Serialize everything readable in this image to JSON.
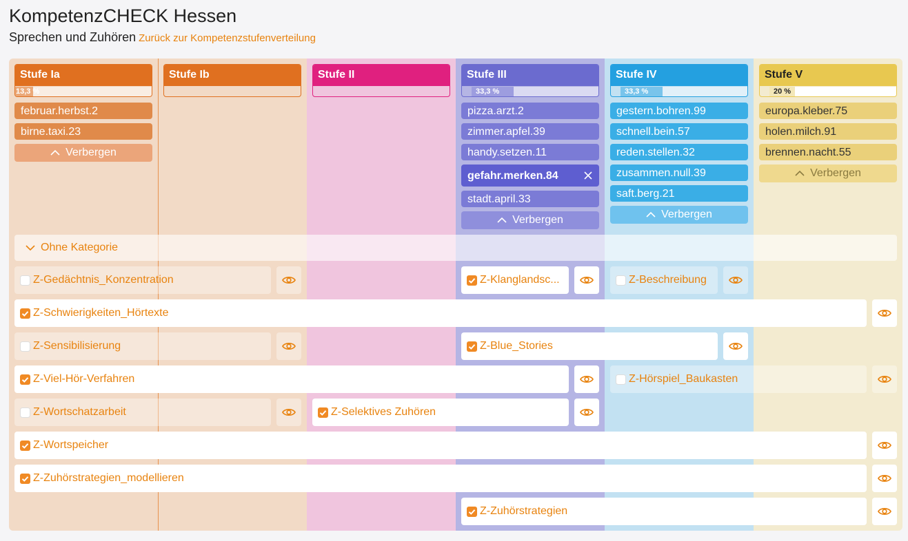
{
  "header": {
    "title": "KompetenzCHECK Hessen",
    "subtitle": "Sprechen und Zuhören",
    "link": "Zurück zur Kompetenzstufenverteilung"
  },
  "columns": [
    {
      "title": "Stufe Ia",
      "color": "#e07020",
      "bg": "#f2dac6",
      "progress": {
        "value": 13.3,
        "label": "13,3 %"
      },
      "tags": [
        {
          "label": "februar.herbst.2"
        },
        {
          "label": "birne.taxi.23"
        }
      ],
      "tag_color": "#e08a4a",
      "toggle": "Verbergen"
    },
    {
      "title": "Stufe Ib",
      "color": "#e07020",
      "bg": "#f2dac6"
    },
    {
      "title": "Stufe II",
      "color": "#e0207f",
      "bg": "#f0c5de"
    },
    {
      "title": "Stufe III",
      "color": "#6b6bcf",
      "bg": "#b5b5e4",
      "progress": {
        "value": 33.3,
        "label": "33,3 %"
      },
      "tags": [
        {
          "label": "pizza.arzt.2"
        },
        {
          "label": "zimmer.apfel.39"
        },
        {
          "label": "handy.setzen.11"
        },
        {
          "label": "gefahr.merken.84",
          "selected": true
        },
        {
          "label": "stadt.april.33"
        }
      ],
      "tag_color": "#7b7bd6",
      "toggle": "Verbergen"
    },
    {
      "title": "Stufe IV",
      "color": "#24a0e0",
      "bg": "#c2e1f2",
      "progress": {
        "value": 33.3,
        "label": "33,3 %"
      },
      "tags": [
        {
          "label": "gestern.bohren.99"
        },
        {
          "label": "schnell.bein.57"
        },
        {
          "label": "reden.stellen.32"
        },
        {
          "label": "zusammen.null.39"
        },
        {
          "label": "saft.berg.21"
        }
      ],
      "tag_color": "#3aaee6",
      "toggle": "Verbergen"
    },
    {
      "title": "Stufe V",
      "color": "#e8c850",
      "bg": "#f3ebd0",
      "progress": {
        "value": 20,
        "label": "20 %"
      },
      "tags": [
        {
          "label": "europa.kleber.75"
        },
        {
          "label": "holen.milch.91"
        },
        {
          "label": "brennen.nacht.55"
        }
      ],
      "tag_color": "#ead07a",
      "toggle": "Verbergen"
    }
  ],
  "category": "Ohne Kategorie",
  "rows": [
    [
      {
        "label": "Z-Gedächtnis_Konzentration",
        "checked": false
      },
      {
        "label": "Z-Klanglandsc...",
        "checked": true
      },
      {
        "label": "Z-Beschreibung",
        "checked": false
      }
    ],
    [
      {
        "label": "Z-Schwierigkeiten_Hörtexte",
        "checked": true
      }
    ],
    [
      {
        "label": "Z-Sensibilisierung",
        "checked": false
      },
      {
        "label": "Z-Blue_Stories",
        "checked": true
      }
    ],
    [
      {
        "label": "Z-Viel-Hör-Verfahren",
        "checked": true
      },
      {
        "label": "Z-Hörspiel_Baukasten",
        "checked": false
      }
    ],
    [
      {
        "label": "Z-Wortschatzarbeit",
        "checked": false
      },
      {
        "label": "Z-Selektives Zuhören",
        "checked": true
      }
    ],
    [
      {
        "label": "Z-Wortspeicher",
        "checked": true
      }
    ],
    [
      {
        "label": "Z-Zuhörstrategien_modellieren",
        "checked": true
      }
    ],
    [
      {
        "label": "Z-Zuhörstrategien",
        "checked": true
      }
    ]
  ]
}
